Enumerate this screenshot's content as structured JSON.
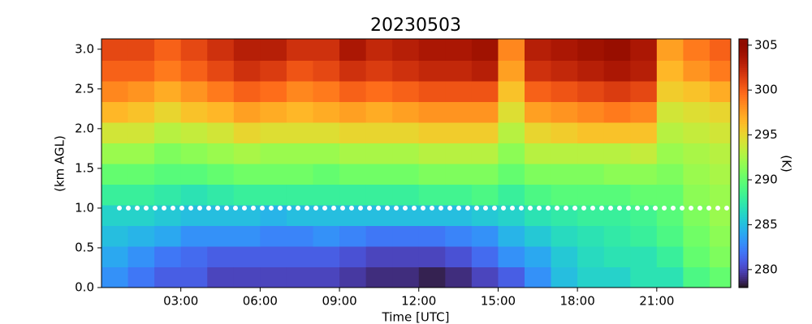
{
  "chart_data": {
    "type": "heatmap",
    "title": "20230503",
    "xlabel": "Time [UTC]",
    "ylabel": "(km AGL)",
    "colorbar_label": "(K)",
    "colormap": "turbo",
    "clim": [
      278,
      305.7
    ],
    "cticks": [
      280,
      285,
      290,
      295,
      300,
      305
    ],
    "xlim": [
      0,
      23.8
    ],
    "ylim": [
      0,
      3.13
    ],
    "xticks": [
      {
        "value": 3,
        "label": "03:00"
      },
      {
        "value": 6,
        "label": "06:00"
      },
      {
        "value": 9,
        "label": "09:00"
      },
      {
        "value": 12,
        "label": "12:00"
      },
      {
        "value": 15,
        "label": "15:00"
      },
      {
        "value": 18,
        "label": "18:00"
      },
      {
        "value": 21,
        "label": "21:00"
      }
    ],
    "yticks": [
      {
        "value": 0,
        "label": "0.0"
      },
      {
        "value": 0.5,
        "label": "0.5"
      },
      {
        "value": 1,
        "label": "1.0"
      },
      {
        "value": 1.5,
        "label": "1.5"
      },
      {
        "value": 2,
        "label": "2.0"
      },
      {
        "value": 2.5,
        "label": "2.5"
      },
      {
        "value": 3,
        "label": "3.0"
      }
    ],
    "x_bins": [
      0,
      1,
      2,
      3,
      4,
      5,
      6,
      7,
      8,
      9,
      10,
      11,
      12,
      13,
      14,
      15,
      16,
      17,
      18,
      19,
      20,
      21,
      22,
      23,
      23.8
    ],
    "y_bins": [
      0,
      0.26,
      0.52,
      0.78,
      1.04,
      1.3,
      1.56,
      1.82,
      2.08,
      2.34,
      2.6,
      2.86,
      3.13
    ],
    "hline": 1.0,
    "values": [
      [
        283,
        282,
        281,
        281,
        280,
        280,
        280,
        280,
        280,
        279.5,
        279,
        279,
        278.5,
        279,
        280,
        281,
        283,
        285,
        286,
        286,
        287,
        287,
        289,
        290
      ],
      [
        284,
        283,
        282,
        281.5,
        281,
        281,
        281,
        281,
        281,
        280.5,
        280,
        280,
        280,
        280.5,
        281.5,
        283,
        284,
        285.5,
        286.5,
        287,
        287,
        288,
        290,
        291
      ],
      [
        285,
        284.5,
        284,
        283,
        283,
        283,
        282.5,
        282.5,
        283,
        282.5,
        282,
        282,
        282,
        282.5,
        283,
        284.5,
        285.5,
        286.5,
        287,
        287.5,
        288,
        289,
        290.5,
        291.5
      ],
      [
        286,
        286,
        285.5,
        285,
        285,
        285,
        284.5,
        285,
        285,
        285,
        285,
        285,
        285,
        285,
        285.5,
        286,
        287,
        287.5,
        288,
        288,
        288.5,
        289.5,
        291,
        292
      ],
      [
        288,
        288,
        287.5,
        287,
        287.5,
        288,
        288,
        288,
        288,
        288,
        288,
        288,
        288.5,
        288.5,
        289,
        288,
        289,
        289.5,
        289.5,
        289.5,
        290,
        290,
        291.5,
        292
      ],
      [
        290,
        290,
        289.5,
        289.5,
        290,
        290.5,
        290.5,
        290.5,
        290,
        290.5,
        290.5,
        290.5,
        291,
        291,
        291,
        290,
        291,
        291,
        291,
        291.5,
        291.5,
        291,
        292,
        292.5
      ],
      [
        292,
        292,
        291,
        291.5,
        292,
        292.5,
        292,
        292,
        292,
        292.5,
        292.5,
        292.5,
        293,
        293,
        293,
        291.5,
        293,
        293,
        293,
        293,
        293.5,
        292,
        292.5,
        293
      ],
      [
        294,
        294,
        293,
        293.5,
        294,
        295,
        294.5,
        294.5,
        294.5,
        295,
        295,
        295,
        295.5,
        295.5,
        295.5,
        293,
        295,
        295.5,
        296,
        296,
        296,
        293,
        293.5,
        294
      ],
      [
        296.5,
        296,
        295,
        296,
        296.5,
        297.5,
        297,
        296.5,
        297,
        297.5,
        297,
        297.5,
        298,
        298,
        298,
        294.5,
        297.5,
        298,
        298.5,
        299,
        298.5,
        294,
        294.5,
        295
      ],
      [
        298.5,
        298,
        297,
        298,
        299,
        300,
        299.5,
        298.5,
        299,
        300,
        299.5,
        300,
        300.5,
        300.5,
        300.5,
        296,
        300,
        300.5,
        301,
        301.5,
        301,
        295.5,
        296,
        297
      ],
      [
        300,
        300,
        299,
        300,
        301,
        302,
        301.5,
        300.5,
        301,
        302,
        301.5,
        302,
        302.5,
        302.5,
        303,
        297.5,
        302,
        302.5,
        303,
        303.5,
        303,
        296.5,
        298,
        299
      ],
      [
        301,
        301,
        300,
        301,
        302,
        303,
        303,
        302,
        302,
        303.5,
        302.5,
        303,
        303.5,
        303.5,
        304,
        298.5,
        303,
        303.5,
        304,
        304.5,
        303.5,
        297.5,
        299,
        300
      ]
    ]
  }
}
